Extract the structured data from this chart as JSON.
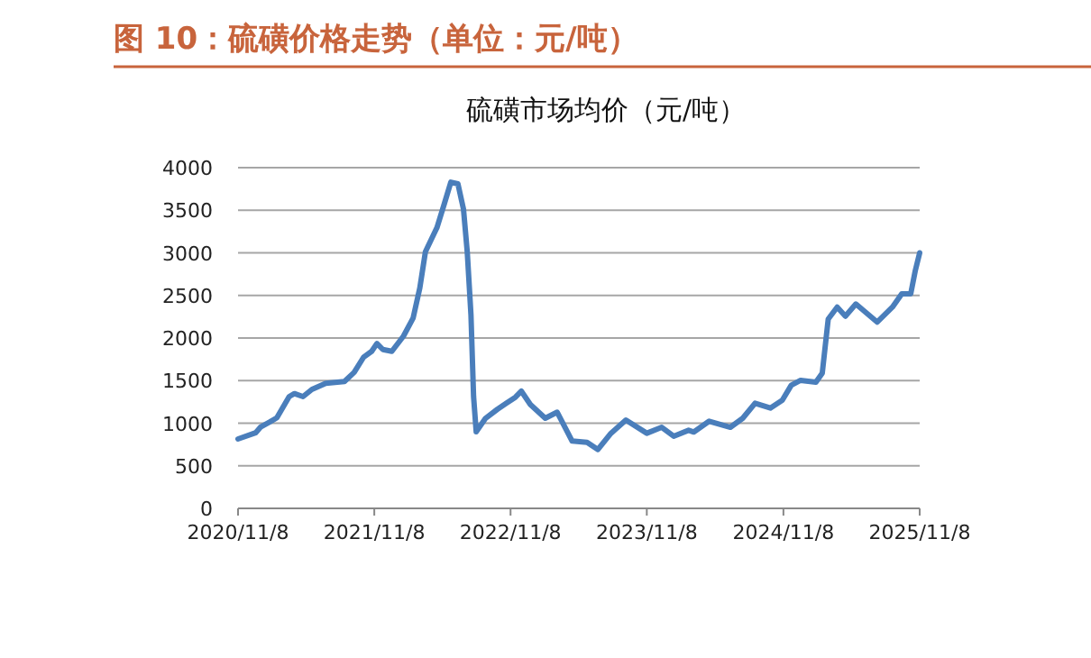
{
  "chart_data": {
    "type": "line",
    "title": "图 10：硫磺价格走势（单位：元/吨）",
    "subtitle": "硫磺市场均价（元/吨）",
    "x": [
      "2020-11-08",
      "2020-12-25",
      "2021-01-08",
      "2021-02-01",
      "2021-02-20",
      "2021-03-25",
      "2021-04-08",
      "2021-05-01",
      "2021-05-25",
      "2021-07-01",
      "2021-08-20",
      "2021-09-15",
      "2021-10-10",
      "2021-11-01",
      "2021-11-15",
      "2021-12-01",
      "2021-12-25",
      "2022-01-25",
      "2022-02-20",
      "2022-03-10",
      "2022-03-25",
      "2022-04-25",
      "2022-05-15",
      "2022-06-01",
      "2022-06-20",
      "2022-07-05",
      "2022-07-15",
      "2022-07-25",
      "2022-08-01",
      "2022-08-08",
      "2022-09-02",
      "2022-10-04",
      "2022-10-28",
      "2022-11-21",
      "2022-12-07",
      "2022-12-31",
      "2023-02-09",
      "2023-03-13",
      "2023-04-22",
      "2023-06-01",
      "2023-06-30",
      "2023-08-04",
      "2023-09-13",
      "2023-11-08",
      "2023-12-18",
      "2024-01-19",
      "2024-02-28",
      "2024-03-13",
      "2024-04-23",
      "2024-06-19",
      "2024-07-22",
      "2024-08-24",
      "2024-10-04",
      "2024-11-05",
      "2024-11-29",
      "2024-12-24",
      "2025-02-03",
      "2025-02-20",
      "2025-03-08",
      "2025-04-01",
      "2025-04-23",
      "2025-05-21",
      "2025-07-17",
      "2025-08-27",
      "2025-09-21",
      "2025-10-15",
      "2025-10-27",
      "2025-11-08"
    ],
    "series": [
      {
        "color": "#4a7ebb",
        "values": [
          815,
          887,
          957,
          1014,
          1064,
          1312,
          1347,
          1312,
          1397,
          1468,
          1489,
          1596,
          1773,
          1844,
          1936,
          1865,
          1844,
          2021,
          2234,
          2589,
          3014,
          3298,
          3582,
          3830,
          3810,
          3511,
          3014,
          2270,
          1312,
          900,
          1058,
          1164,
          1235,
          1305,
          1376,
          1220,
          1058,
          1129,
          790,
          776,
          691,
          882,
          1037,
          882,
          952,
          847,
          917,
          896,
          1023,
          952,
          1058,
          1235,
          1178,
          1270,
          1446,
          1503,
          1481,
          1587,
          2222,
          2363,
          2257,
          2399,
          2187,
          2363,
          2519,
          2519,
          2787,
          3000
        ]
      }
    ],
    "xlim": [
      "2020-11-08",
      "2025-11-08"
    ],
    "xticks": [
      {
        "value": "2020-11-08",
        "label": "2020/11/8"
      },
      {
        "value": "2021-11-08",
        "label": "2021/11/8"
      },
      {
        "value": "2022-11-08",
        "label": "2022/11/8"
      },
      {
        "value": "2023-11-08",
        "label": "2023/11/8"
      },
      {
        "value": "2024-11-08",
        "label": "2024/11/8"
      },
      {
        "value": "2025-11-08",
        "label": "2025/11/8"
      }
    ],
    "ylim": [
      0,
      4000
    ],
    "yticks": [
      0,
      500,
      1000,
      1500,
      2000,
      2500,
      3000,
      3500,
      4000
    ],
    "grid": "y",
    "marker": "none",
    "line_style": "solid"
  }
}
